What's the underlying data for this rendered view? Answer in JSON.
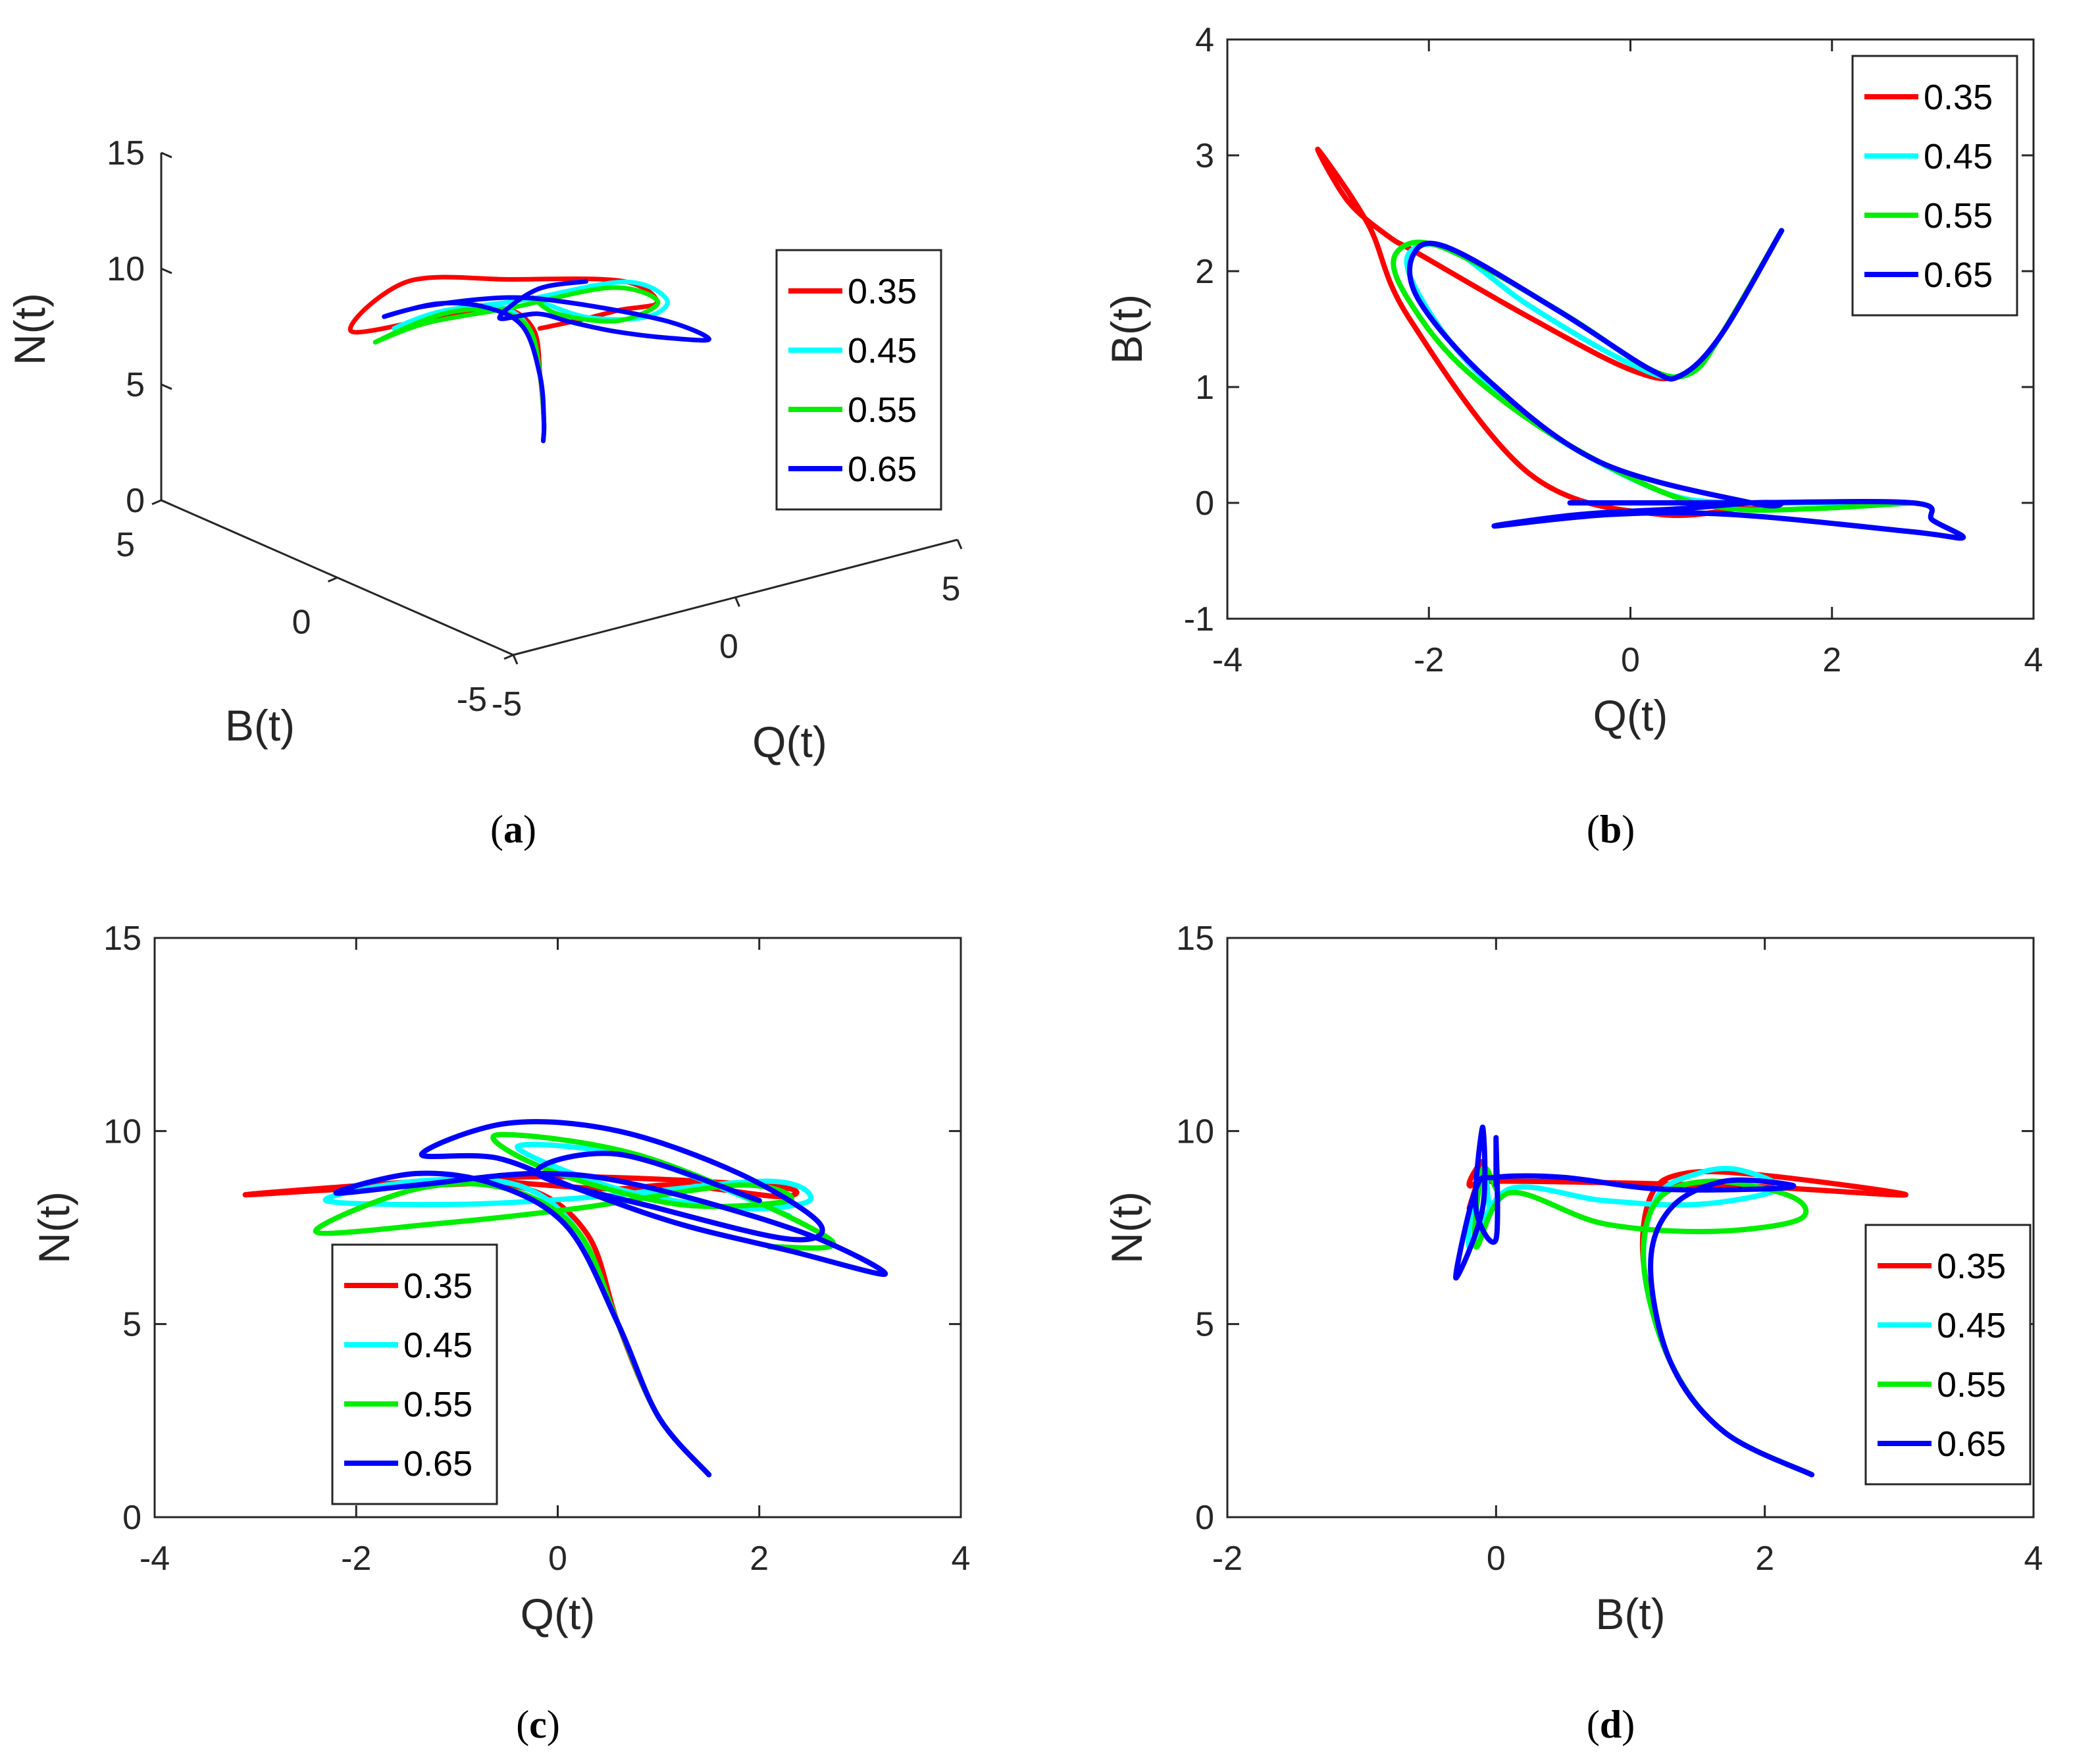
{
  "chart_data": [
    {
      "type": "line",
      "projection": "3d",
      "caption": [
        "(",
        "a",
        ")"
      ],
      "xlabel": "Q(t)",
      "ylabel": "B(t)",
      "zlabel": "N(t)",
      "xlim": [
        -5,
        5
      ],
      "ylim": [
        -5,
        5
      ],
      "zlim": [
        0,
        15
      ],
      "xticks": [
        "-5",
        "0",
        "5"
      ],
      "yticks": [
        "-5",
        "0",
        "5"
      ],
      "zticks": [
        "0",
        "5",
        "10",
        "15"
      ],
      "grid": false,
      "legend_position": "right",
      "series": [
        {
          "name": "0.35",
          "color": "#ff0000"
        },
        {
          "name": "0.45",
          "color": "#00ffff"
        },
        {
          "name": "0.55",
          "color": "#00ee00"
        },
        {
          "name": "0.65",
          "color": "#0000ff"
        }
      ]
    },
    {
      "type": "line",
      "caption": [
        "(",
        "b",
        ")"
      ],
      "xlabel": "Q(t)",
      "ylabel": "B(t)",
      "xlim": [
        -4,
        4
      ],
      "ylim": [
        -1,
        4
      ],
      "xticks": [
        "-4",
        "-2",
        "0",
        "2",
        "4"
      ],
      "yticks": [
        "-1",
        "0",
        "1",
        "2",
        "3",
        "4"
      ],
      "grid": false,
      "legend_position": "top-right",
      "series": [
        {
          "name": "0.35",
          "color": "#ff0000",
          "x": [
            2.8,
            1.5,
            0.3,
            -1.0,
            -2.2,
            -2.6,
            -3.1,
            -2.8,
            -2.4,
            -2.1,
            -1.0,
            0.0,
            0.5,
            0.9,
            1.5
          ],
          "y": [
            0.0,
            0.0,
            -0.1,
            0.25,
            1.6,
            2.4,
            3.05,
            2.6,
            2.3,
            2.15,
            1.6,
            1.15,
            1.1,
            1.45,
            2.35
          ]
        },
        {
          "name": "0.45",
          "color": "#00ffff",
          "x": [
            2.8,
            1.8,
            1.0,
            0.3,
            -0.8,
            -1.6,
            -2.1,
            -2.2,
            -1.8,
            -1.0,
            0.0,
            0.5,
            0.9,
            1.5
          ],
          "y": [
            0.0,
            0.0,
            0.0,
            0.1,
            0.6,
            1.2,
            1.8,
            2.15,
            2.2,
            1.7,
            1.2,
            1.1,
            1.45,
            2.35
          ]
        },
        {
          "name": "0.55",
          "color": "#00ee00",
          "x": [
            2.8,
            1.8,
            1.0,
            0.3,
            -0.8,
            -1.7,
            -2.2,
            -2.35,
            -2.1,
            -1.6,
            -0.6,
            0.2,
            0.6,
            0.9,
            1.5
          ],
          "y": [
            0.0,
            -0.05,
            -0.05,
            0.1,
            0.6,
            1.2,
            1.75,
            2.1,
            2.25,
            2.1,
            1.6,
            1.15,
            1.12,
            1.45,
            2.35
          ]
        },
        {
          "name": "0.65",
          "color": "#0000ff",
          "x": [
            -0.6,
            1.0,
            2.8,
            3.0,
            3.3,
            2.8,
            1.0,
            -0.2,
            -1.35,
            -0.5,
            0.5,
            1.2,
            1.5,
            1.2,
            -0.3,
            -1.4,
            -2.1,
            -2.15,
            -1.8,
            -0.7,
            0.2,
            0.5,
            0.9,
            1.5
          ],
          "y": [
            0.0,
            0.0,
            0.0,
            -0.15,
            -0.3,
            -0.25,
            -0.1,
            -0.1,
            -0.2,
            -0.1,
            -0.05,
            0.0,
            0.0,
            0.0,
            0.35,
            1.05,
            1.75,
            2.15,
            2.2,
            1.65,
            1.15,
            1.1,
            1.45,
            2.35
          ]
        }
      ]
    },
    {
      "type": "line",
      "caption": [
        "(",
        "c",
        ")"
      ],
      "xlabel": "Q(t)",
      "ylabel": "N(t)",
      "xlim": [
        -4,
        4
      ],
      "ylim": [
        0,
        15
      ],
      "xticks": [
        "-4",
        "-2",
        "0",
        "2",
        "4"
      ],
      "yticks": [
        "0",
        "5",
        "10",
        "15"
      ],
      "grid": false,
      "legend_position": "bottom-left",
      "series": [
        {
          "name": "0.35",
          "color": "#ff0000",
          "x": [
            1.5,
            1.0,
            0.6,
            0.3,
            -0.3,
            -1.3,
            -3.1,
            -1.0,
            0.5,
            2.2,
            2.2,
            1.2,
            0.5,
            -0.6
          ],
          "y": [
            1.1,
            2.6,
            5.0,
            7.3,
            8.5,
            8.6,
            8.35,
            8.75,
            8.8,
            8.55,
            8.3,
            8.6,
            8.5,
            8.7
          ]
        },
        {
          "name": "0.45",
          "color": "#00ffff",
          "x": [
            1.5,
            1.0,
            0.6,
            0.2,
            -0.4,
            -1.4,
            -2.3,
            -1.0,
            0.4,
            2.1,
            2.5,
            1.8,
            0.6,
            -0.4,
            0.8,
            2.3
          ],
          "y": [
            1.1,
            2.6,
            5.0,
            7.4,
            8.6,
            8.7,
            8.2,
            8.1,
            8.3,
            8.7,
            8.2,
            8.0,
            8.5,
            9.6,
            9.3,
            7.8
          ]
        },
        {
          "name": "0.55",
          "color": "#00ee00",
          "x": [
            1.5,
            1.0,
            0.6,
            0.2,
            -0.5,
            -1.4,
            -2.4,
            -1.2,
            0.2,
            1.8,
            2.3,
            1.2,
            -0.1,
            -0.6,
            0.9,
            2.7,
            2.1
          ],
          "y": [
            1.1,
            2.6,
            5.0,
            7.4,
            8.5,
            8.5,
            7.4,
            7.6,
            8.0,
            8.6,
            8.2,
            8.1,
            9.0,
            9.9,
            9.3,
            7.2,
            7.0
          ]
        },
        {
          "name": "0.65",
          "color": "#0000ff",
          "x": [
            1.5,
            1.0,
            0.6,
            0.1,
            -0.6,
            -1.4,
            -2.2,
            -1.4,
            -0.2,
            0.8,
            2.4,
            3.25,
            2.3,
            1.2,
            0.2,
            -0.6,
            -1.35,
            -0.5,
            0.6,
            1.8,
            2.6,
            2.3,
            1.0,
            -0.2,
            0.6,
            2.0
          ],
          "y": [
            1.1,
            2.6,
            5.0,
            7.5,
            8.6,
            8.9,
            8.4,
            8.6,
            8.9,
            8.6,
            7.4,
            6.3,
            6.9,
            7.6,
            8.5,
            9.3,
            9.4,
            10.2,
            10.0,
            8.9,
            7.6,
            7.2,
            8.0,
            8.9,
            9.4,
            8.2
          ]
        }
      ]
    },
    {
      "type": "line",
      "caption": [
        "(",
        "d",
        ")"
      ],
      "xlabel": "B(t)",
      "ylabel": "N(t)",
      "xlim": [
        -2,
        4
      ],
      "ylim": [
        0,
        15
      ],
      "xticks": [
        "-2",
        "0",
        "2",
        "4"
      ],
      "yticks": [
        "0",
        "5",
        "10",
        "15"
      ],
      "grid": false,
      "legend_position": "bottom-right",
      "series": [
        {
          "name": "0.35",
          "color": "#ff0000",
          "x": [
            2.35,
            1.7,
            1.3,
            1.1,
            1.15,
            1.4,
            2.0,
            3.05,
            2.0,
            1.0,
            0.0,
            -0.2,
            -0.1,
            -0.2
          ],
          "y": [
            1.1,
            2.2,
            4.0,
            6.5,
            8.3,
            8.9,
            8.85,
            8.35,
            8.55,
            8.65,
            8.7,
            8.6,
            9.2,
            8.0
          ]
        },
        {
          "name": "0.45",
          "color": "#00ffff",
          "x": [
            2.35,
            1.7,
            1.3,
            1.1,
            1.2,
            1.5,
            1.8,
            2.1,
            1.5,
            0.8,
            0.1,
            -0.2,
            -0.1,
            -0.05
          ],
          "y": [
            1.1,
            2.2,
            4.0,
            6.5,
            8.3,
            8.9,
            9.0,
            8.5,
            8.1,
            8.2,
            8.5,
            7.0,
            9.0,
            8.0
          ]
        },
        {
          "name": "0.55",
          "color": "#00ee00",
          "x": [
            2.35,
            1.7,
            1.3,
            1.1,
            1.2,
            1.6,
            2.2,
            2.25,
            1.6,
            0.8,
            0.1,
            -0.15,
            -0.1,
            0.0
          ],
          "y": [
            1.1,
            2.2,
            4.0,
            6.5,
            8.2,
            8.7,
            8.3,
            7.7,
            7.4,
            7.6,
            8.4,
            7.0,
            9.0,
            8.5
          ]
        },
        {
          "name": "0.65",
          "color": "#0000ff",
          "x": [
            2.35,
            1.7,
            1.3,
            1.15,
            1.3,
            1.7,
            2.2,
            2.0,
            1.2,
            0.5,
            0.0,
            -0.15,
            -0.3,
            -0.1,
            -0.1,
            -0.15,
            0.0,
            0.0,
            0.0
          ],
          "y": [
            1.1,
            2.2,
            4.0,
            6.5,
            8.0,
            8.7,
            8.6,
            8.5,
            8.5,
            8.8,
            8.8,
            8.5,
            6.2,
            8.0,
            10.1,
            8.0,
            7.2,
            9.8,
            8.6
          ]
        }
      ]
    }
  ]
}
